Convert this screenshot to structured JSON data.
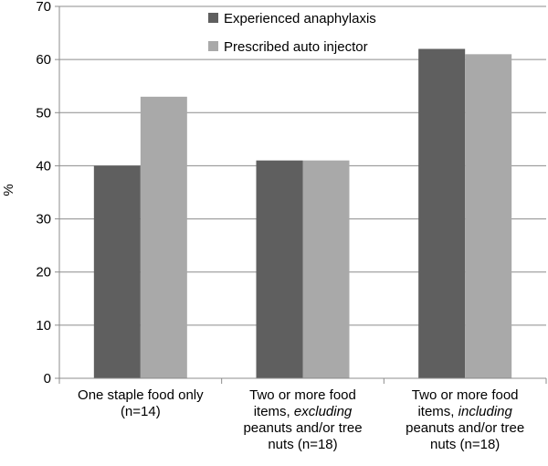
{
  "chart_data": {
    "type": "bar",
    "title": "",
    "xlabel": "",
    "ylabel": "%",
    "ylim": [
      0,
      70
    ],
    "yticks": [
      0,
      10,
      20,
      30,
      40,
      50,
      60,
      70
    ],
    "grid": true,
    "legend_position": "top-center",
    "categories": [
      "One staple food only (n=14)",
      "Two or more food items, excluding peanuts and/or tree nuts (n=18)",
      "Two or more food items, including peanuts and/or tree nuts (n=18)"
    ],
    "category_label_parts": [
      [
        {
          "text": "One staple food only"
        },
        {
          "br": true
        },
        {
          "text": "(n=14)"
        }
      ],
      [
        {
          "text": "Two or more food"
        },
        {
          "br": true
        },
        {
          "text": "items, "
        },
        {
          "text": "excluding",
          "italic": true
        },
        {
          "br": true
        },
        {
          "text": "peanuts and/or tree"
        },
        {
          "br": true
        },
        {
          "text": "nuts (n=18)"
        }
      ],
      [
        {
          "text": "Two or more food"
        },
        {
          "br": true
        },
        {
          "text": "items, "
        },
        {
          "text": "including",
          "italic": true
        },
        {
          "br": true
        },
        {
          "text": "peanuts and/or tree"
        },
        {
          "br": true
        },
        {
          "text": "nuts (n=18)"
        }
      ]
    ],
    "series": [
      {
        "name": "Experienced anaphylaxis",
        "color": "#5f5f5f",
        "values": [
          40,
          41,
          62
        ]
      },
      {
        "name": "Prescribed auto injector",
        "color": "#a9a9a9",
        "values": [
          53,
          41,
          61
        ]
      }
    ]
  }
}
